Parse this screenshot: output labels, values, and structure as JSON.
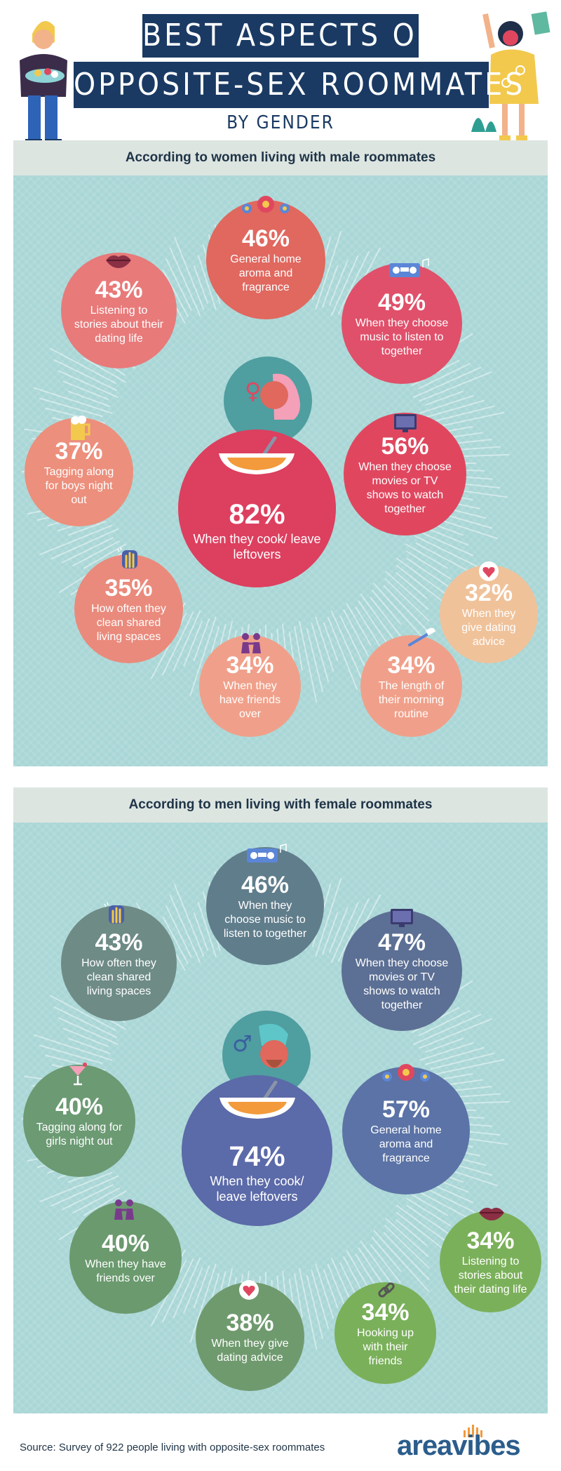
{
  "header": {
    "title_line1": "BEST ASPECTS OF",
    "title_line2": "OPPOSITE-SEX ROOMMATES",
    "subtitle": "BY GENDER"
  },
  "colors": {
    "women_accent": "#e0475f",
    "men_accent": "#5b6aa8",
    "panel_bg": "#a9d6d6",
    "title_bg": "#1a3a63"
  },
  "women_section": {
    "heading": "According to women living with male roommates",
    "center": {
      "value": "82%",
      "label": "When they cook/ leave leftovers",
      "icon": "soup-bowl-icon"
    },
    "items": [
      {
        "value": "46%",
        "label": "General home aroma and fragrance",
        "icon": "flower-icon"
      },
      {
        "value": "43%",
        "label": "Listening to stories about their dating life",
        "icon": "lips-icon"
      },
      {
        "value": "49%",
        "label": "When they choose music to listen to together",
        "icon": "boombox-icon"
      },
      {
        "value": "37%",
        "label": "Tagging along for boys night out",
        "icon": "beer-icon"
      },
      {
        "value": "56%",
        "label": "When they choose movies or TV shows to watch together",
        "icon": "tv-icon"
      },
      {
        "value": "35%",
        "label": "How often they clean shared living spaces",
        "icon": "cleaning-glove-icon"
      },
      {
        "value": "32%",
        "label": "When they give dating advice",
        "icon": "heart-bubble-icon"
      },
      {
        "value": "34%",
        "label": "When they have friends over",
        "icon": "friends-icon"
      },
      {
        "value": "34%",
        "label": "The length of their morning routine",
        "icon": "toothbrush-icon"
      }
    ]
  },
  "men_section": {
    "heading": "According to men living with female roommates",
    "center": {
      "value": "74%",
      "label": "When they cook/ leave leftovers",
      "icon": "soup-bowl-icon"
    },
    "items": [
      {
        "value": "46%",
        "label": "When they choose music to listen to together",
        "icon": "boombox-icon"
      },
      {
        "value": "43%",
        "label": "How often they clean shared living spaces",
        "icon": "cleaning-glove-icon"
      },
      {
        "value": "47%",
        "label": "When they choose movies or TV shows to watch together",
        "icon": "tv-icon"
      },
      {
        "value": "40%",
        "label": "Tagging along for girls night out",
        "icon": "cocktail-icon"
      },
      {
        "value": "57%",
        "label": "General home aroma and fragrance",
        "icon": "flower-icon"
      },
      {
        "value": "40%",
        "label": "When they have friends over",
        "icon": "friends-icon"
      },
      {
        "value": "34%",
        "label": "Listening to stories about their dating life",
        "icon": "lips-icon"
      },
      {
        "value": "38%",
        "label": "When they give dating advice",
        "icon": "heart-bubble-icon"
      },
      {
        "value": "34%",
        "label": "Hooking up with their friends",
        "icon": "chain-link-icon"
      }
    ]
  },
  "footer": {
    "source": "Source: Survey of 922 people living with opposite-sex roommates",
    "logo": "areavibes"
  }
}
